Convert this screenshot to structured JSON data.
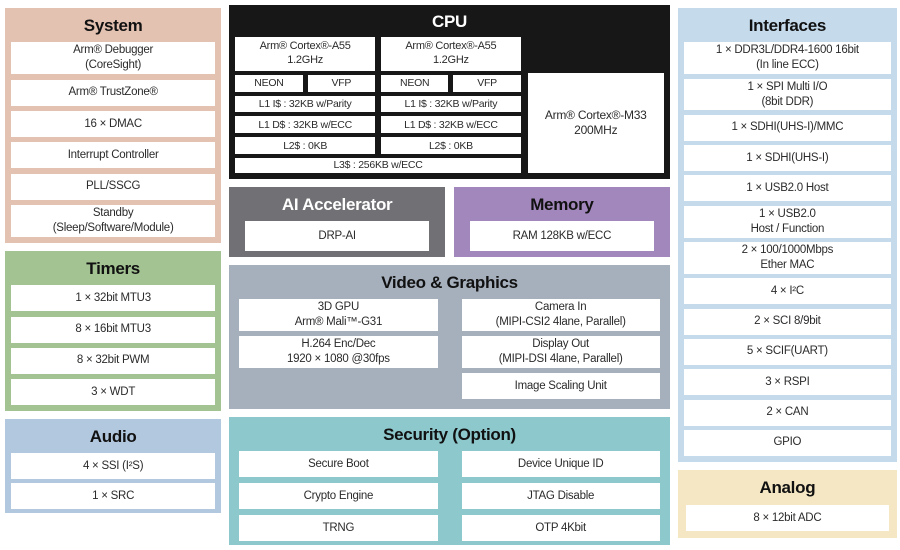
{
  "colors": {
    "system": "#e4c2b2",
    "timers": "#a3c492",
    "audio": "#b2c8df",
    "interfaces": "#c5daea",
    "analog": "#f5e7c3",
    "cpu": "#171717",
    "ai": "#717074",
    "memory": "#a287bd",
    "video": "#a6b0bd",
    "security": "#8dc8cd",
    "cell": "#ffffff"
  },
  "system": {
    "title": "System",
    "items": [
      "Arm® Debugger\n(CoreSight)",
      "Arm® TrustZone®",
      "16 × DMAC",
      "Interrupt Controller",
      "PLL/SSCG",
      "Standby\n(Sleep/Software/Module)"
    ]
  },
  "timers": {
    "title": "Timers",
    "items": [
      "1 × 32bit MTU3",
      "8 × 16bit MTU3",
      "8 × 32bit PWM",
      "3 × WDT"
    ]
  },
  "audio": {
    "title": "Audio",
    "items": [
      "4 × SSI (I²S)",
      "1 × SRC"
    ]
  },
  "cpu": {
    "title": "CPU",
    "a55": {
      "name": "Arm® Cortex®-A55\n1.2GHz",
      "neon": "NEON",
      "vfp": "VFP",
      "l1i": "L1 I$ : 32KB w/Parity",
      "l1d": "L1 D$ : 32KB w/ECC",
      "l2": "L2$ : 0KB"
    },
    "l3": "L3$ : 256KB w/ECC",
    "m33": "Arm® Cortex®-M33\n200MHz"
  },
  "ai": {
    "title": "AI Accelerator",
    "items": [
      "DRP-AI"
    ]
  },
  "memory": {
    "title": "Memory",
    "items": [
      "RAM 128KB w/ECC"
    ]
  },
  "video": {
    "title": "Video & Graphics",
    "left": [
      "3D GPU\nArm® Mali™-G31",
      "H.264 Enc/Dec\n1920 × 1080 @30fps"
    ],
    "right": [
      "Camera In\n(MIPI-CSI2 4lane, Parallel)",
      "Display Out\n(MIPI-DSI 4lane, Parallel)",
      "Image Scaling Unit"
    ]
  },
  "security": {
    "title": "Security (Option)",
    "left": [
      "Secure Boot",
      "Crypto Engine",
      "TRNG"
    ],
    "right": [
      "Device Unique ID",
      "JTAG Disable",
      "OTP 4Kbit"
    ]
  },
  "interfaces": {
    "title": "Interfaces",
    "items": [
      "1 × DDR3L/DDR4-1600 16bit\n(In line ECC)",
      "1 × SPI Multi I/O\n(8bit DDR)",
      "1 × SDHI(UHS-I)/MMC",
      "1 × SDHI(UHS-I)",
      "1 × USB2.0 Host",
      "1 × USB2.0\nHost / Function",
      "2 × 100/1000Mbps\nEther MAC",
      "4 × I²C",
      "2 × SCI 8/9bit",
      "5 × SCIF(UART)",
      "3 × RSPI",
      "2 × CAN",
      "GPIO"
    ]
  },
  "analog": {
    "title": "Analog",
    "items": [
      "8 × 12bit ADC"
    ]
  }
}
